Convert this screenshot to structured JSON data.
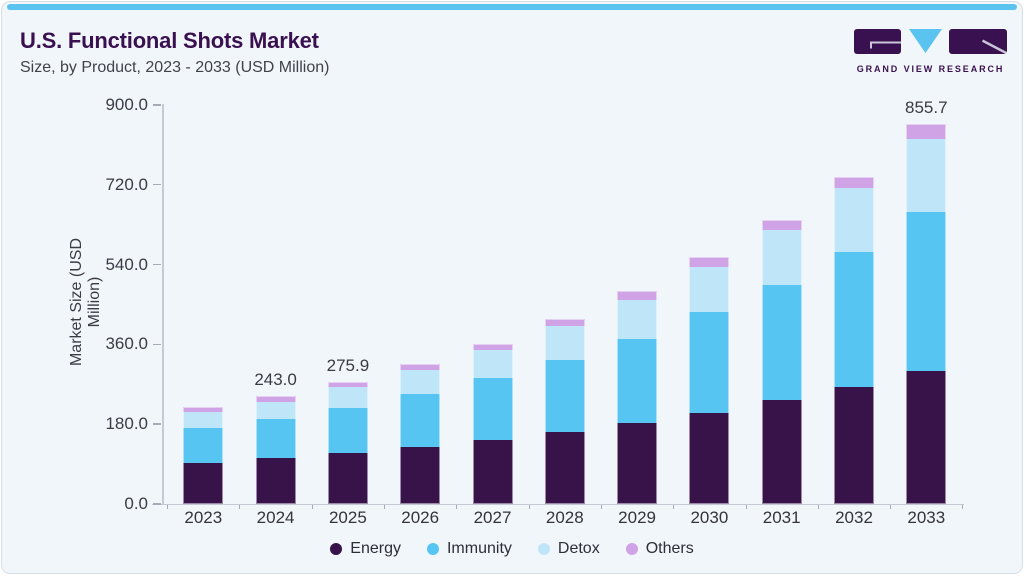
{
  "header": {
    "title": "U.S. Functional Shots Market",
    "subtitle": "Size, by Product, 2023 - 2033 (USD Million)"
  },
  "logo": {
    "wordmark": "GRAND VIEW RESEARCH",
    "tile_color": "#3a1150",
    "triangle_color": "#5bc3ef"
  },
  "theme": {
    "accent_bar_color": "#5bc3ef",
    "card_background": "#f1f6fa",
    "title_color": "#3a1150"
  },
  "chart_data": {
    "type": "bar",
    "stacked": true,
    "title": "U.S. Functional Shots Market Size, by Product, 2023 - 2033 (USD Million)",
    "xlabel": "",
    "ylabel": "Market Size (USD Million)",
    "ylim": [
      0,
      900
    ],
    "yticks": [
      0,
      180,
      360,
      540,
      720,
      900
    ],
    "ytick_labels": [
      "0.0",
      "180.0",
      "360.0",
      "540.0",
      "720.0",
      "900.0"
    ],
    "grid": false,
    "legend_position": "bottom",
    "categories": [
      "2023",
      "2024",
      "2025",
      "2026",
      "2027",
      "2028",
      "2029",
      "2030",
      "2031",
      "2032",
      "2033"
    ],
    "series": [
      {
        "name": "Energy",
        "color": "#38134a",
        "values": [
          93.1,
          103.1,
          115.0,
          127.9,
          143.6,
          161.7,
          182.7,
          205.9,
          233.8,
          264.5,
          300.1
        ]
      },
      {
        "name": "Immunity",
        "color": "#57c5f2",
        "values": [
          78.9,
          89.3,
          100.8,
          120.9,
          140.5,
          163.7,
          190.1,
          226.4,
          260.7,
          304.4,
          357.9
        ]
      },
      {
        "name": "Detox",
        "color": "#bfe5f8",
        "values": [
          34.7,
          37.6,
          48.1,
          53.4,
          62.5,
          75.3,
          87.9,
          102.8,
          123.3,
          143.0,
          164.6
        ]
      },
      {
        "name": "Others",
        "color": "#cfa3e5",
        "values": [
          12.0,
          13.0,
          12.0,
          13.5,
          14.9,
          16.5,
          19.6,
          22.6,
          23.2,
          26.2,
          33.1
        ]
      }
    ],
    "totals": [
      218.7,
      243.0,
      275.9,
      315.7,
      361.5,
      417.2,
      480.3,
      557.7,
      641.0,
      738.1,
      855.7
    ],
    "visible_total_labels": {
      "2024": "243.0",
      "2025": "275.9",
      "2033": "855.7"
    }
  }
}
